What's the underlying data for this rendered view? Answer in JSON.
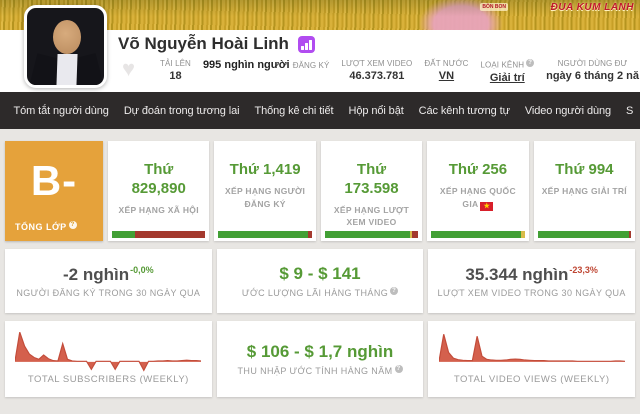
{
  "banner": {
    "overlay_text": "ĐUA KUM LANH",
    "logo_text": "BÒN BON"
  },
  "header": {
    "channel_name": "Võ Nguyễn Hoài Linh",
    "uploads": {
      "label": "TẢI LÊN",
      "value": "18"
    },
    "subscribers": {
      "value": "995 nghìn người",
      "label": "ĐĂNG KÝ"
    },
    "video_views": {
      "label": "LƯỢT XEM VIDEO",
      "value": "46.373.781"
    },
    "country": {
      "label": "ĐẤT NƯỚC",
      "value": "VN"
    },
    "channel_type": {
      "label": "LOẠI KÊNH",
      "value": "Giải trí"
    },
    "user_created": {
      "label": "NGƯỜI DÙNG ĐƯ",
      "value": "ngày 6 tháng 2 nă"
    }
  },
  "nav": {
    "items": [
      "Tóm tắt người dùng",
      "Dự đoán trong tương lai",
      "Thống kê chi tiết",
      "Hộp nổi bật",
      "Các kênh tương tự",
      "Video người dùng",
      "S"
    ]
  },
  "grade": {
    "letter": "B-",
    "label": "TỔNG LỚP"
  },
  "ranks": [
    {
      "value": "Thứ 829,890",
      "label": "XẾP HẠNG XÃ HỘI",
      "bar": [
        {
          "w": 25,
          "color": "#42a035"
        },
        {
          "w": 75,
          "color": "#a4392e"
        }
      ]
    },
    {
      "value": "Thứ 1,419",
      "label": "XẾP HẠNG NGƯỜI ĐĂNG KÝ",
      "bar": [
        {
          "w": 96,
          "color": "#42a035"
        },
        {
          "w": 4,
          "color": "#a4392e"
        }
      ]
    },
    {
      "value": "Thứ 173.598",
      "label": "XẾP HẠNG LƯỢT XEM VIDEO",
      "bar": [
        {
          "w": 91,
          "color": "#42a035"
        },
        {
          "w": 2,
          "color": "#d8bc4a"
        },
        {
          "w": 7,
          "color": "#a4392e"
        }
      ]
    },
    {
      "value": "Thứ 256",
      "label": "XẾP HẠNG QUỐC GIA",
      "flag": "vn",
      "bar": [
        {
          "w": 96,
          "color": "#42a035"
        },
        {
          "w": 4,
          "color": "#d8bc4a"
        }
      ]
    },
    {
      "value": "Thứ 994",
      "label": "XẾP HẠNG GIẢI TRÍ",
      "bar": [
        {
          "w": 98,
          "color": "#42a035"
        },
        {
          "w": 2,
          "color": "#a4392e"
        }
      ]
    }
  ],
  "monthly": [
    {
      "value": "-2 nghìn",
      "delta": "-0,0%",
      "label": "NGƯỜI ĐĂNG KÝ TRONG 30 NGÀY QUA"
    },
    {
      "value": "$ 9 - $ 141",
      "label": "ƯỚC LƯỢNG LÃI HÀNG THÁNG"
    },
    {
      "value": "35.344 nghìn",
      "delta": "-23,3%",
      "label": "LƯỢT XEM VIDEO TRONG 30 NGÀY QUA"
    }
  ],
  "yearly": {
    "value": "$ 106 - $ 1,7 nghìn",
    "label": "THU NHẬP ƯỚC TÍNH HÀNG NĂM"
  },
  "chart_data": [
    {
      "type": "area",
      "title": "TOTAL SUBSCRIBERS (WEEKLY)",
      "legend_position": "none",
      "grid": false,
      "ylim": [
        -30,
        100
      ],
      "values": [
        3,
        95,
        50,
        25,
        14,
        8,
        22,
        10,
        4,
        3,
        58,
        8,
        3,
        2,
        2,
        2,
        -24,
        2,
        2,
        2,
        2,
        -24,
        2,
        2,
        2,
        2,
        2,
        -27,
        2,
        2,
        3,
        3,
        4,
        3,
        3,
        4,
        5,
        4,
        4,
        3
      ]
    },
    {
      "type": "area",
      "title": "TOTAL VIDEO VIEWS (WEEKLY)",
      "legend_position": "none",
      "grid": false,
      "ylim": [
        -30,
        100
      ],
      "values": [
        2,
        88,
        30,
        12,
        7,
        5,
        4,
        4,
        82,
        18,
        8,
        6,
        5,
        5,
        6,
        8,
        9,
        8,
        6,
        5,
        4,
        4,
        4,
        3,
        3,
        3,
        3,
        3,
        3,
        2,
        2,
        2,
        2,
        2,
        2,
        2,
        2,
        3,
        3,
        2
      ]
    }
  ],
  "icons": {
    "help": "?",
    "heart": "♥",
    "star": "★"
  },
  "colors": {
    "spark_fill": "#d4604d",
    "spark_stroke": "#c34c3a",
    "accent_green": "#569a36",
    "accent_red": "#bf4734",
    "grade_orange": "#e5a23b",
    "badge_purple": "#b14cf0"
  }
}
